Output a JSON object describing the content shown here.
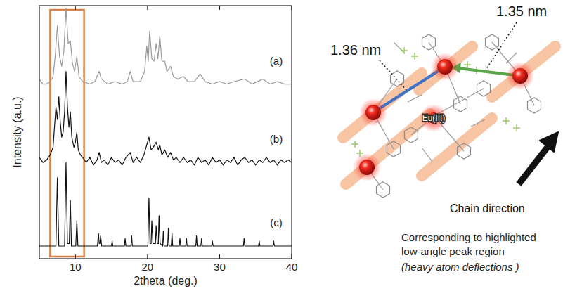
{
  "chart_data": {
    "type": "line",
    "x_label": "2theta (deg.)",
    "y_label": "Intensity (a.u.)",
    "xlim": [
      5,
      40
    ],
    "xticks": [
      10,
      20,
      30,
      40
    ],
    "ylim": [
      0,
      100
    ],
    "grid": false,
    "tick_labels": "x",
    "highlight": {
      "x": [
        6.5,
        11.2
      ],
      "color": "#d9834a"
    },
    "series": [
      {
        "name": "(a)",
        "color": "#9a9a9a",
        "x": [
          5,
          5.5,
          6.0,
          6.5,
          6.9,
          7.2,
          7.5,
          7.8,
          8.1,
          8.4,
          8.7,
          9.0,
          9.3,
          9.6,
          9.9,
          10.2,
          10.5,
          11.0,
          12.0,
          12.7,
          13.0,
          13.3,
          13.6,
          14.5,
          15.5,
          16.5,
          17.2,
          17.6,
          18.0,
          19.0,
          19.6,
          19.9,
          20.1,
          20.3,
          20.6,
          20.9,
          21.2,
          21.45,
          21.7,
          22.0,
          22.4,
          22.7,
          23.2,
          23.6,
          24.2,
          25.0,
          25.6,
          26.5,
          27.3,
          28.0,
          29.0,
          30.0,
          31.0,
          32.0,
          33.5,
          34.5,
          36.0,
          37.0,
          38.0,
          39.0,
          40.0
        ],
        "values": [
          71,
          69,
          69,
          70,
          72,
          80,
          92,
          80,
          76,
          82,
          99,
          85,
          86,
          77,
          74,
          80,
          72,
          70,
          69,
          70,
          72,
          74,
          71,
          69,
          70,
          69,
          70,
          74,
          70,
          70,
          74,
          84,
          78,
          90,
          79,
          78,
          85,
          79,
          88,
          78,
          78,
          74,
          76,
          72,
          71,
          72,
          70,
          70,
          73,
          70,
          69,
          70,
          69,
          70,
          71,
          69,
          71,
          69,
          70,
          69,
          69
        ]
      },
      {
        "name": "(b)",
        "color": "#111111",
        "x": [
          5,
          5.5,
          6.0,
          6.5,
          6.9,
          7.1,
          7.3,
          7.5,
          7.7,
          7.9,
          8.1,
          8.3,
          8.5,
          8.7,
          8.9,
          9.1,
          9.3,
          9.5,
          9.8,
          10.0,
          10.2,
          10.4,
          10.7,
          11.0,
          11.5,
          12.0,
          12.5,
          13.0,
          13.3,
          13.6,
          14.0,
          14.5,
          15.0,
          15.5,
          16.0,
          16.5,
          17.0,
          17.6,
          18.0,
          18.5,
          19.0,
          19.5,
          19.9,
          20.2,
          20.5,
          20.8,
          21.2,
          21.5,
          21.7,
          22.0,
          22.4,
          22.8,
          23.2,
          23.6,
          24.0,
          24.5,
          25.0,
          25.5,
          26.0,
          26.5,
          27.0,
          27.5,
          28.0,
          28.5,
          29.0,
          29.5,
          30.0,
          30.5,
          31.0,
          31.5,
          32.0,
          32.5,
          33.0,
          33.5,
          34.0,
          34.5,
          35.0,
          35.5,
          36.0,
          36.5,
          37.0,
          37.5,
          38.0,
          38.5,
          39.0,
          39.5,
          40.0
        ],
        "values": [
          40,
          38,
          39,
          41,
          44,
          52,
          60,
          55,
          64,
          54,
          48,
          50,
          58,
          74,
          60,
          52,
          58,
          48,
          44,
          46,
          50,
          43,
          41,
          40,
          38,
          40,
          37,
          39,
          42,
          38,
          39,
          37,
          40,
          38,
          39,
          37,
          40,
          42,
          38,
          40,
          38,
          41,
          45,
          48,
          43,
          44,
          46,
          43,
          45,
          41,
          43,
          40,
          42,
          39,
          40,
          38,
          40,
          38,
          39,
          37,
          40,
          38,
          39,
          37,
          40,
          38,
          39,
          37,
          39,
          38,
          40,
          37,
          39,
          40,
          38,
          39,
          37,
          39,
          38,
          40,
          38,
          39,
          37,
          39,
          38,
          39,
          38
        ]
      },
      {
        "name": "(c)",
        "color": "#111111",
        "x": [
          5,
          7.3,
          7.5,
          7.7,
          8.5,
          8.7,
          8.9,
          9.15,
          9.3,
          9.45,
          10.05,
          10.2,
          10.35,
          13.05,
          13.2,
          13.3,
          13.4,
          13.5,
          13.65,
          15.0,
          15.1,
          15.2,
          16.8,
          16.9,
          17.0,
          17.7,
          17.8,
          17.9,
          20.05,
          20.2,
          20.35,
          20.5,
          20.6,
          20.75,
          21.1,
          21.2,
          21.35,
          21.5,
          21.6,
          21.75,
          22.1,
          22.2,
          22.3,
          22.8,
          22.9,
          23.0,
          23.3,
          23.4,
          23.5,
          24.4,
          24.5,
          24.6,
          25.3,
          25.4,
          25.5,
          26.7,
          26.8,
          26.9,
          27.4,
          27.5,
          27.6,
          28.9,
          29.0,
          29.1,
          33.3,
          33.4,
          33.5,
          35.4,
          35.5,
          35.6,
          37.4,
          37.5,
          37.6,
          40
        ],
        "values": [
          5,
          5,
          32,
          5,
          5,
          38,
          6,
          6,
          23,
          5,
          5,
          15,
          5,
          5,
          10,
          6,
          6,
          9,
          5,
          5,
          7,
          5,
          5,
          8,
          5,
          5,
          9,
          5,
          5,
          24,
          6,
          6,
          15,
          6,
          6,
          13,
          6,
          6,
          17,
          6,
          5,
          11,
          5,
          5,
          12,
          5,
          5,
          10,
          5,
          5,
          8,
          5,
          5,
          8,
          5,
          5,
          9,
          5,
          5,
          8,
          5,
          5,
          7,
          5,
          5,
          8,
          5,
          5,
          7,
          5,
          5,
          7,
          5,
          5
        ]
      }
    ]
  },
  "diagram": {
    "distances": [
      {
        "label": "1.36 nm"
      },
      {
        "label": "1.35 nm"
      }
    ],
    "atom_label": "Eu(III)",
    "arrow_label": "Chain direction",
    "caption": [
      "Corresponding to highlighted",
      "low-angle peak region"
    ],
    "caption_note": "(heavy atom deflections )"
  }
}
